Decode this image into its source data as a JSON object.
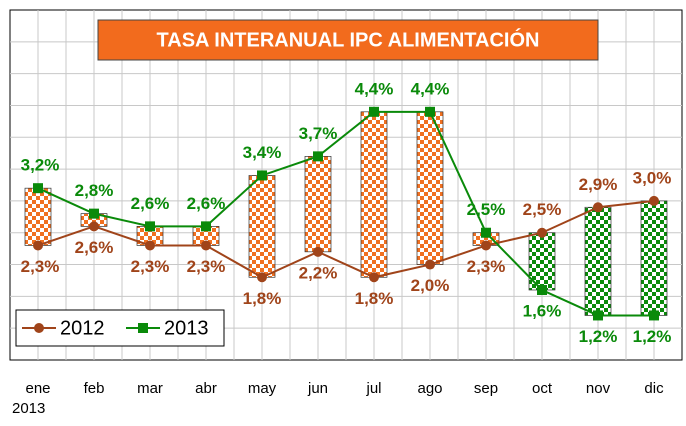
{
  "chart_data": {
    "type": "line",
    "title": "TASA INTERANUAL IPC ALIMENTACIÓN",
    "categories": [
      "ene",
      "feb",
      "mar",
      "abr",
      "may",
      "jun",
      "jul",
      "ago",
      "sep",
      "oct",
      "nov",
      "dic"
    ],
    "year_label": "2013",
    "series": [
      {
        "name": "2012",
        "color": "#a0441a",
        "values": [
          2.3,
          2.6,
          2.3,
          2.3,
          1.8,
          2.2,
          1.8,
          2.0,
          2.3,
          2.5,
          2.9,
          3.0
        ],
        "value_labels": [
          "2,3%",
          "2,6%",
          "2,3%",
          "2,3%",
          "1,8%",
          "2,2%",
          "1,8%",
          "2,0%",
          "2,3%",
          "2,5%",
          "2,9%",
          "3,0%"
        ]
      },
      {
        "name": "2013",
        "color": "#0a8a0a",
        "values": [
          3.2,
          2.8,
          2.6,
          2.6,
          3.4,
          3.7,
          4.4,
          4.4,
          2.5,
          1.6,
          1.2,
          1.2
        ],
        "value_labels": [
          "3,2%",
          "2,8%",
          "2,6%",
          "2,6%",
          "3,4%",
          "3,7%",
          "4,4%",
          "4,4%",
          "2,5%",
          "1,6%",
          "1,2%",
          "1,2%"
        ]
      }
    ],
    "ylim": [
      0.5,
      6.0
    ],
    "yticks": [
      1.0,
      1.5,
      2.0,
      2.5,
      3.0,
      3.5,
      4.0,
      4.5,
      5.0,
      5.5
    ],
    "grid": true,
    "legend": "lower left"
  }
}
